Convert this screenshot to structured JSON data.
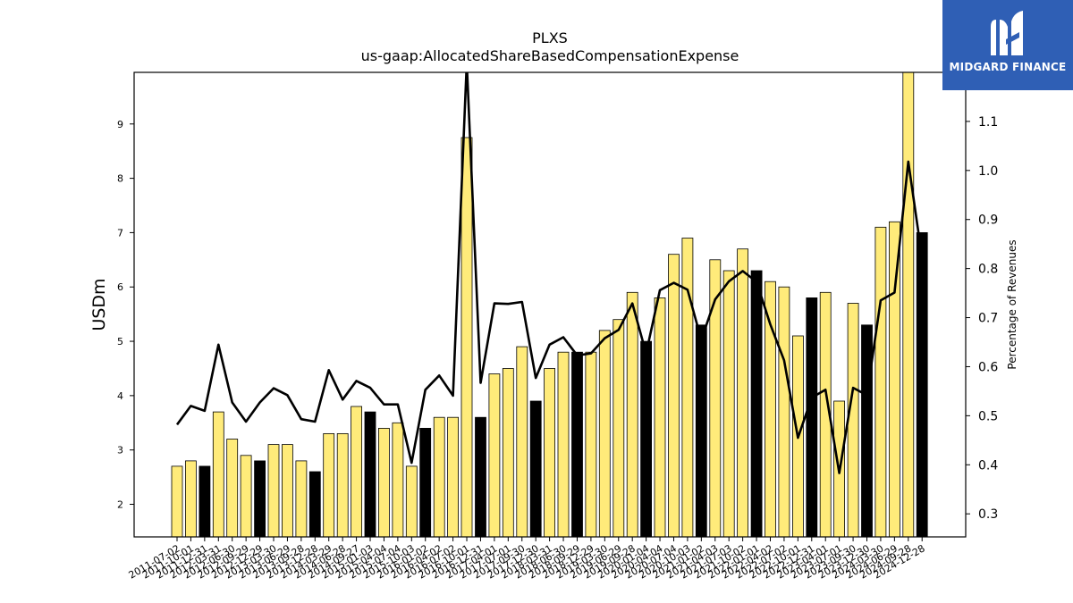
{
  "chart_data": {
    "type": "bar",
    "title": "PLXS",
    "subtitle": "us-gaap:AllocatedShareBasedCompensationExpense",
    "ylabel": "USDm",
    "y2label": "Percentage of Revenues",
    "ylim": [
      1.4,
      9.95
    ],
    "y2lim": [
      0.253,
      1.2
    ],
    "yticks": [
      2,
      3,
      4,
      5,
      6,
      7,
      8,
      9
    ],
    "y2ticks": [
      0.3,
      0.4,
      0.5,
      0.6,
      0.7,
      0.8,
      0.9,
      1.0,
      1.1
    ],
    "grid": false,
    "colors": {
      "bar": "#ffeb7a",
      "bar_highlight": "#000000",
      "line": "#000000",
      "logo_bg": "#2f5fb5"
    },
    "categories": [
      "2011-07-02",
      "2011-10-01",
      "2011-12-31",
      "2012-03-31",
      "2012-06-30",
      "2012-09-29",
      "2012-12-29",
      "2013-03-30",
      "2013-06-29",
      "2013-09-28",
      "2013-12-28",
      "2014-03-29",
      "2014-06-28",
      "2014-09-27",
      "2015-01-03",
      "2015-04-04",
      "2015-07-04",
      "2015-10-03",
      "2016-01-02",
      "2016-04-02",
      "2016-07-02",
      "2016-10-01",
      "2016-12-31",
      "2017-04-01",
      "2017-07-01",
      "2017-09-30",
      "2017-12-30",
      "2018-03-31",
      "2018-06-30",
      "2018-09-29",
      "2018-12-29",
      "2019-03-30",
      "2019-06-29",
      "2019-09-28",
      "2020-01-04",
      "2020-04-04",
      "2020-07-04",
      "2020-10-03",
      "2021-01-02",
      "2021-04-03",
      "2021-07-03",
      "2021-10-02",
      "2022-01-01",
      "2022-04-02",
      "2022-07-02",
      "2022-10-01",
      "2022-12-31",
      "2023-04-01",
      "2023-07-01",
      "2023-09-30",
      "2023-12-30",
      "2024-03-30",
      "2024-06-29",
      "2024-09-28",
      "2024-12-28"
    ],
    "values": [
      2.7,
      2.8,
      2.7,
      3.7,
      3.2,
      2.9,
      2.8,
      3.1,
      3.1,
      2.8,
      2.6,
      3.3,
      3.3,
      3.8,
      3.7,
      3.4,
      3.5,
      2.7,
      3.4,
      3.6,
      3.6,
      8.75,
      3.6,
      4.4,
      4.5,
      4.9,
      3.9,
      4.5,
      4.8,
      4.8,
      4.8,
      5.2,
      5.4,
      5.9,
      5.0,
      5.8,
      6.6,
      6.9,
      5.3,
      6.5,
      6.3,
      6.7,
      6.3,
      6.1,
      6.0,
      5.1,
      5.8,
      5.9,
      3.9,
      5.7,
      5.3,
      7.1,
      7.2,
      10.0,
      7.0
    ],
    "highlight": [
      false,
      false,
      true,
      false,
      false,
      false,
      true,
      false,
      false,
      false,
      true,
      false,
      false,
      false,
      true,
      false,
      false,
      false,
      true,
      false,
      false,
      false,
      true,
      false,
      false,
      false,
      true,
      false,
      false,
      true,
      false,
      false,
      false,
      false,
      true,
      false,
      false,
      false,
      true,
      false,
      false,
      false,
      true,
      false,
      false,
      false,
      true,
      false,
      false,
      false,
      true,
      false,
      false,
      false,
      true
    ],
    "pct_of_revenues": [
      0.482,
      0.52,
      0.51,
      0.645,
      0.527,
      0.488,
      0.527,
      0.556,
      0.542,
      0.493,
      0.488,
      0.593,
      0.533,
      0.571,
      0.557,
      0.523,
      0.523,
      0.404,
      0.553,
      0.582,
      0.541,
      1.22,
      0.567,
      0.729,
      0.728,
      0.732,
      0.577,
      0.645,
      0.66,
      0.623,
      0.627,
      0.658,
      0.675,
      0.729,
      0.627,
      0.756,
      0.771,
      0.757,
      0.655,
      0.737,
      0.774,
      0.795,
      0.773,
      0.686,
      0.613,
      0.455,
      0.537,
      0.553,
      0.383,
      0.557,
      0.542,
      0.735,
      0.751,
      1.018,
      0.822
    ]
  },
  "logo": {
    "text": "MIDGARD FINANCE",
    "icon": "midgard-m-logo-icon"
  }
}
